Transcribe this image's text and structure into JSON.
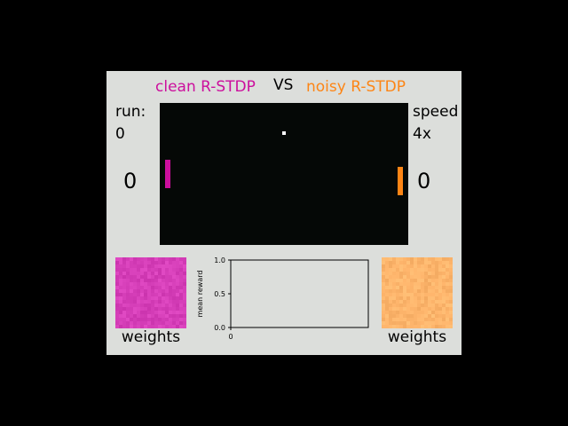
{
  "header": {
    "left_title": "clean R-STDP",
    "vs": "VS",
    "right_title": "noisy R-STDP"
  },
  "colors": {
    "left": "#cc0f9d",
    "right": "#fd8515",
    "panel": "#dcdedb",
    "court": "#050806",
    "left_weights": "#d63fb9",
    "right_weights": "#feb56c"
  },
  "left_info": {
    "run_label": "run:",
    "run_value": "0",
    "score": "0"
  },
  "right_info": {
    "speed_label": "speed",
    "speed_value": "4x",
    "score": "0"
  },
  "weights": {
    "left_label": "weights",
    "right_label": "weights"
  },
  "chart_data": {
    "type": "line",
    "ylabel": "mean reward",
    "xlabel": "",
    "ylim": [
      0.0,
      1.0
    ],
    "yticks": [
      "0.0",
      "0.5",
      "1.0"
    ],
    "xticks": [
      "0"
    ],
    "series": []
  }
}
